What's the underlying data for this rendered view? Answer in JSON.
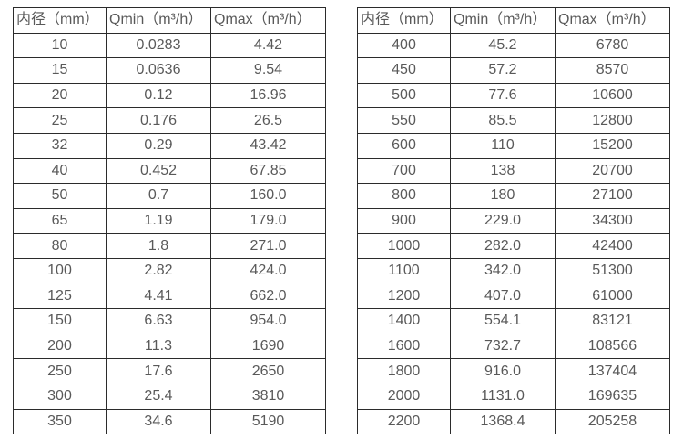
{
  "page": {
    "background_color": "#ffffff",
    "border_color": "#2b2b2b",
    "text_color": "#595959"
  },
  "tables": [
    {
      "name": "flow-rate-table-small-diameters",
      "columns": [
        "内径（mm）",
        "Qmin（m³/h）",
        "Qmax（m³/h）"
      ],
      "rows": [
        [
          "10",
          "0.0283",
          "4.42"
        ],
        [
          "15",
          "0.0636",
          "9.54"
        ],
        [
          "20",
          "0.12",
          "16.96"
        ],
        [
          "25",
          "0.176",
          "26.5"
        ],
        [
          "32",
          "0.29",
          "43.42"
        ],
        [
          "40",
          "0.452",
          "67.85"
        ],
        [
          "50",
          "0.7",
          "160.0"
        ],
        [
          "65",
          "1.19",
          "179.0"
        ],
        [
          "80",
          "1.8",
          "271.0"
        ],
        [
          "100",
          "2.82",
          "424.0"
        ],
        [
          "125",
          "4.41",
          "662.0"
        ],
        [
          "150",
          "6.63",
          "954.0"
        ],
        [
          "200",
          "11.3",
          "1690"
        ],
        [
          "250",
          "17.6",
          "2650"
        ],
        [
          "300",
          "25.4",
          "3810"
        ],
        [
          "350",
          "34.6",
          "5190"
        ]
      ]
    },
    {
      "name": "flow-rate-table-large-diameters",
      "columns": [
        "内径（mm）",
        "Qmin（m³/h）",
        "Qmax（m³/h）"
      ],
      "rows": [
        [
          "400",
          "45.2",
          "6780"
        ],
        [
          "450",
          "57.2",
          "8570"
        ],
        [
          "500",
          "77.6",
          "10600"
        ],
        [
          "550",
          "85.5",
          "12800"
        ],
        [
          "600",
          "110",
          "15200"
        ],
        [
          "700",
          "138",
          "20700"
        ],
        [
          "800",
          "180",
          "27100"
        ],
        [
          "900",
          "229.0",
          "34300"
        ],
        [
          "1000",
          "282.0",
          "42400"
        ],
        [
          "1100",
          "342.0",
          "51300"
        ],
        [
          "1200",
          "407.0",
          "61000"
        ],
        [
          "1400",
          "554.1",
          "83121"
        ],
        [
          "1600",
          "732.7",
          "108566"
        ],
        [
          "1800",
          "916.0",
          "137404"
        ],
        [
          "2000",
          "1131.0",
          "169635"
        ],
        [
          "2200",
          "1368.4",
          "205258"
        ]
      ]
    }
  ]
}
